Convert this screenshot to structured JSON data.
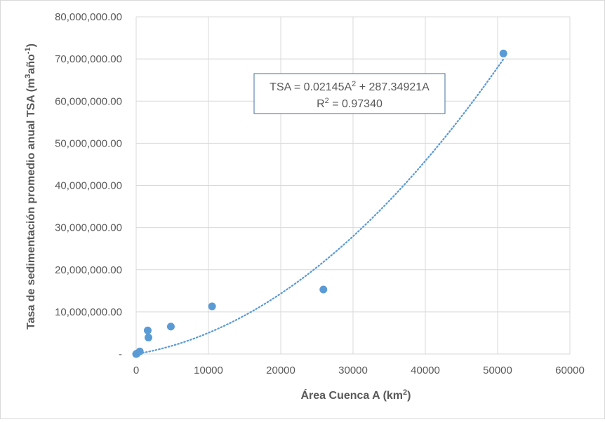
{
  "chart_data": {
    "type": "scatter",
    "xlabel": "Área Cuenca A (km",
    "xlabel_sup": "2",
    "xlabel_end": ")",
    "ylabel": "Tasa de sedimentación promedio anual TSA (m",
    "ylabel_sup1": "3",
    "ylabel_mid": "año",
    "ylabel_sup2": "-1",
    "ylabel_end": ")",
    "xlim": [
      0,
      60000
    ],
    "ylim": [
      0,
      80000000
    ],
    "x_ticks": [
      0,
      10000,
      20000,
      30000,
      40000,
      50000,
      60000
    ],
    "x_tick_labels": [
      "0",
      "10000",
      "20000",
      "30000",
      "40000",
      "50000",
      "60000"
    ],
    "y_ticks": [
      0,
      10000000,
      20000000,
      30000000,
      40000000,
      50000000,
      60000000,
      70000000,
      80000000
    ],
    "y_tick_labels": [
      "-",
      "10,000,000.00",
      "20,000,000.00",
      "30,000,000.00",
      "40,000,000.00",
      "50,000,000.00",
      "60,000,000.00",
      "70,000,000.00",
      "80,000,000.00"
    ],
    "grid": true,
    "series": [
      {
        "x": [
          0,
          100,
          500,
          1600,
          1700,
          4800,
          10500,
          25900,
          50800
        ],
        "y": [
          0,
          100000,
          600000,
          5600000,
          3900000,
          6500000,
          11300000,
          15300000,
          71300000
        ]
      }
    ],
    "trendline": {
      "type": "polynomial",
      "a2": 0.02145,
      "a1": 287.34921,
      "x_range": [
        0,
        50800
      ],
      "equation_parts": [
        "TSA = 0.02145A",
        "2",
        " + 287.34921A"
      ],
      "r2_parts": [
        "R",
        "2",
        " = 0.97340"
      ]
    },
    "colors": {
      "marker": "#5b9bd5",
      "grid": "#d9d9d9",
      "text": "#595959",
      "eq_border": "#41719c"
    }
  }
}
